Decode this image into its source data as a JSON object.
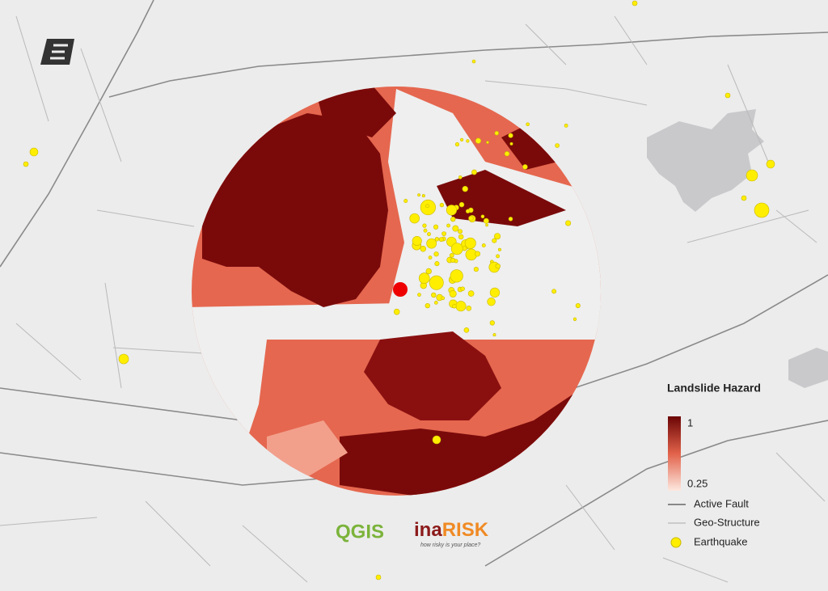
{
  "legend": {
    "title": "Landslide Hazard",
    "scale": {
      "max": 1,
      "min": 0.25
    },
    "items": [
      "Active Fault",
      "Geo-Structure",
      "Earthquake"
    ]
  },
  "logos": {
    "qgis": "QGIS",
    "inarisk": {
      "prefix": "ina",
      "suffix": "RISK",
      "tagline": "how risky is your place?"
    }
  }
}
